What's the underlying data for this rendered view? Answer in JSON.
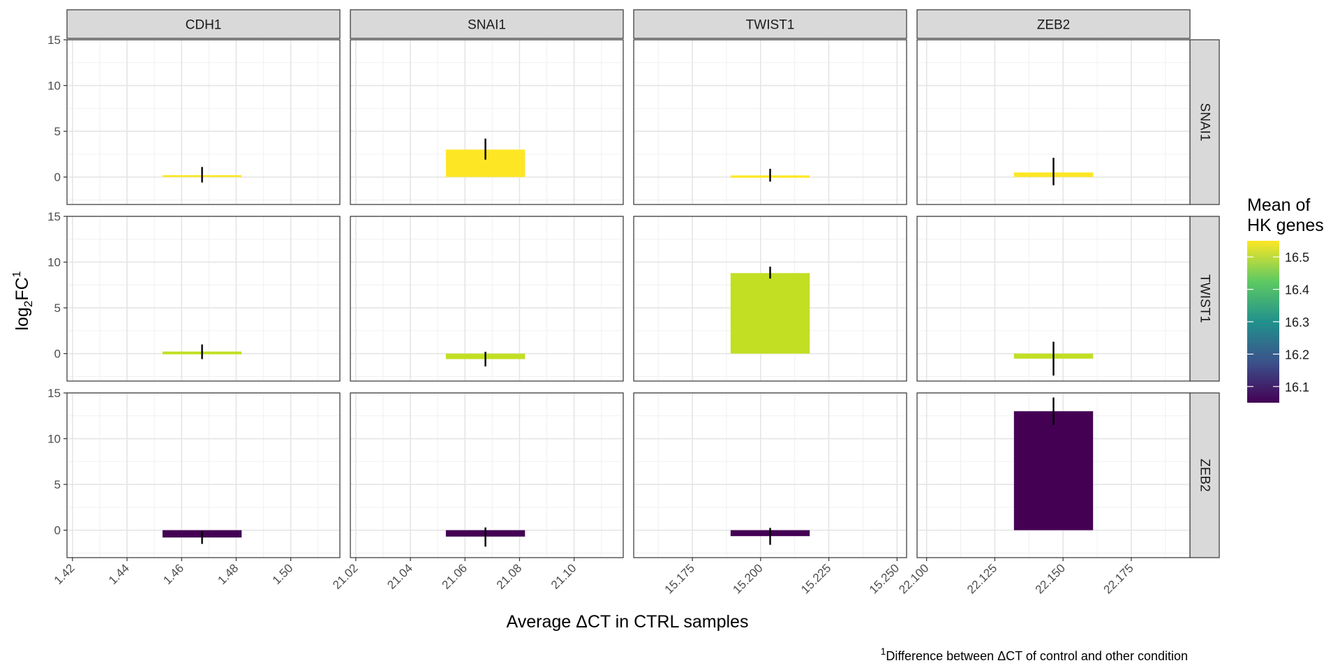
{
  "chart_data": {
    "type": "bar",
    "x_axis_title": "Average ΔCT in CTRL samples",
    "y_axis_title": {
      "base": "log",
      "sub": "2",
      "main": "FC",
      "sup": "1"
    },
    "footnote": {
      "sup": "1",
      "text": "Difference between ΔCT of control and other condition"
    },
    "legend": {
      "title_lines": [
        "Mean of",
        "HK genes"
      ],
      "ticks": [
        16.1,
        16.2,
        16.3,
        16.4,
        16.5
      ],
      "range": [
        16.05,
        16.55
      ],
      "colors": [
        "#440154",
        "#3b528b",
        "#21918c",
        "#5ec962",
        "#fde725"
      ]
    },
    "ylim": [
      -3,
      15
    ],
    "y_ticks": [
      0,
      5,
      10,
      15
    ],
    "columns": [
      {
        "label": "CDH1",
        "xlim": [
          1.418,
          1.518
        ],
        "ticks": [
          1.42,
          1.44,
          1.46,
          1.48,
          1.5
        ],
        "tick_labels": [
          "1.42",
          "1.44",
          "1.46",
          "1.48",
          "1.50"
        ],
        "bar_x": 1.4675,
        "bar_halfwidth": 0.0145
      },
      {
        "label": "SNAI1",
        "xlim": [
          21.018,
          21.118
        ],
        "ticks": [
          21.02,
          21.04,
          21.06,
          21.08,
          21.1
        ],
        "tick_labels": [
          "21.02",
          "21.04",
          "21.06",
          "21.08",
          "21.10"
        ],
        "bar_x": 21.0675,
        "bar_halfwidth": 0.0145
      },
      {
        "label": "TWIST1",
        "xlim": [
          15.1535,
          15.2535
        ],
        "ticks": [
          15.175,
          15.2,
          15.225,
          15.25
        ],
        "tick_labels": [
          "15.175",
          "15.200",
          "15.225",
          "15.250"
        ],
        "bar_x": 15.2035,
        "bar_halfwidth": 0.0145
      },
      {
        "label": "ZEB2",
        "xlim": [
          22.0965,
          22.1965
        ],
        "ticks": [
          22.1,
          22.125,
          22.15,
          22.175
        ],
        "tick_labels": [
          "22.100",
          "22.125",
          "22.150",
          "22.175"
        ],
        "bar_x": 22.1465,
        "bar_halfwidth": 0.0145
      }
    ],
    "rows": [
      {
        "label": "SNAI1",
        "cells": [
          {
            "value": 0.2,
            "err_low": -0.6,
            "err_high": 1.1,
            "fill": "#fde725"
          },
          {
            "value": 3.0,
            "err_low": 1.9,
            "err_high": 4.2,
            "fill": "#fde725"
          },
          {
            "value": 0.1,
            "err_low": -0.5,
            "err_high": 0.9,
            "fill": "#fde725"
          },
          {
            "value": 0.5,
            "err_low": -0.9,
            "err_high": 2.1,
            "fill": "#fde725"
          }
        ]
      },
      {
        "label": "TWIST1",
        "cells": [
          {
            "value": 0.15,
            "err_low": -0.6,
            "err_high": 1.0,
            "fill": "#c2df23"
          },
          {
            "value": -0.6,
            "err_low": -1.4,
            "err_high": 0.2,
            "fill": "#c2df23"
          },
          {
            "value": 8.8,
            "err_low": 8.2,
            "err_high": 9.5,
            "fill": "#c2df23"
          },
          {
            "value": -0.55,
            "err_low": -2.4,
            "err_high": 1.3,
            "fill": "#c2df23"
          }
        ]
      },
      {
        "label": "ZEB2",
        "cells": [
          {
            "value": -0.8,
            "err_low": -1.5,
            "err_high": -0.1,
            "fill": "#440154"
          },
          {
            "value": -0.7,
            "err_low": -1.8,
            "err_high": 0.3,
            "fill": "#440154"
          },
          {
            "value": -0.65,
            "err_low": -1.6,
            "err_high": 0.25,
            "fill": "#440154"
          },
          {
            "value": 13.0,
            "err_low": 11.5,
            "err_high": 14.5,
            "fill": "#440154"
          }
        ]
      }
    ]
  }
}
